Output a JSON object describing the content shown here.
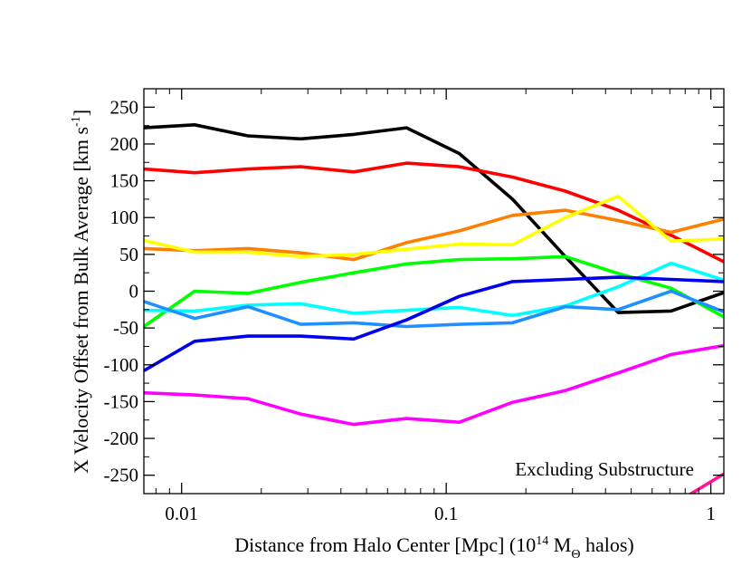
{
  "chart_data": {
    "type": "line",
    "title": "",
    "xlabel": "Distance from Halo Center [Mpc] (10",
    "xlabel_sup": "14",
    "xlabel_unit": " M",
    "xlabel_sub": "Θ",
    "xlabel_tail": " halos)",
    "ylabel": "X Velocity Offset from Bulk Average [km s",
    "ylabel_sup": "-1",
    "ylabel_tail": "]",
    "x_scale": "log",
    "xlim": [
      0.0072,
      1.12
    ],
    "ylim": [
      -275,
      275
    ],
    "xticks": [
      0.01,
      0.1,
      1
    ],
    "xtick_labels": [
      "0.01",
      "0.1",
      "1"
    ],
    "yticks": [
      250,
      200,
      150,
      100,
      50,
      0,
      -50,
      -100,
      -150,
      -200,
      -250
    ],
    "ytick_labels": [
      "250",
      "200",
      "150",
      "100",
      "50",
      "0",
      "-50",
      "-100",
      "-150",
      "-200",
      "-250"
    ],
    "grid": false,
    "legend": "none",
    "annotation": "Excluding Substructure",
    "series": [
      {
        "color": "#000000",
        "x": [
          0.0072,
          0.0112,
          0.0178,
          0.0282,
          0.0447,
          0.0708,
          0.112,
          0.178,
          0.282,
          0.447,
          0.708,
          1.12
        ],
        "y": [
          222,
          226,
          211,
          207,
          213,
          222,
          187,
          125,
          47,
          -29,
          -27,
          -2
        ]
      },
      {
        "color": "#ff0000",
        "x": [
          0.0072,
          0.0112,
          0.0178,
          0.0282,
          0.0447,
          0.0708,
          0.112,
          0.178,
          0.282,
          0.447,
          0.708,
          1.12
        ],
        "y": [
          166,
          161,
          166,
          169,
          162,
          174,
          169,
          155,
          136,
          110,
          76,
          40
        ]
      },
      {
        "color": "#ff8000",
        "x": [
          0.0072,
          0.0112,
          0.0178,
          0.0282,
          0.0447,
          0.0708,
          0.112,
          0.178,
          0.282,
          0.447,
          0.708,
          1.12
        ],
        "y": [
          58,
          55,
          58,
          52,
          43,
          66,
          82,
          103,
          110,
          96,
          80,
          98
        ]
      },
      {
        "color": "#ffff00",
        "x": [
          0.0072,
          0.0112,
          0.0178,
          0.0282,
          0.0447,
          0.0708,
          0.112,
          0.178,
          0.282,
          0.447,
          0.708,
          1.12
        ],
        "y": [
          69,
          53,
          53,
          47,
          50,
          57,
          64,
          63,
          100,
          129,
          68,
          71
        ]
      },
      {
        "color": "#00ff00",
        "x": [
          0.0072,
          0.0112,
          0.0178,
          0.0282,
          0.0447,
          0.0708,
          0.112,
          0.178,
          0.282,
          0.447,
          0.708,
          1.12
        ],
        "y": [
          -48,
          0,
          -3,
          12,
          25,
          37,
          43,
          44,
          47,
          24,
          4,
          -35
        ]
      },
      {
        "color": "#00ffff",
        "x": [
          0.0072,
          0.0112,
          0.0178,
          0.0282,
          0.0447,
          0.0708,
          0.112,
          0.178,
          0.282,
          0.447,
          0.708,
          1.12
        ],
        "y": [
          -26,
          -27,
          -19,
          -17,
          -30,
          -26,
          -22,
          -33,
          -20,
          6,
          38,
          15
        ]
      },
      {
        "color": "#1e90ff",
        "x": [
          0.0072,
          0.0112,
          0.0178,
          0.0282,
          0.0447,
          0.0708,
          0.112,
          0.178,
          0.282,
          0.447,
          0.708,
          1.12
        ],
        "y": [
          -14,
          -37,
          -21,
          -45,
          -43,
          -48,
          -45,
          -43,
          -21,
          -25,
          0,
          -28
        ]
      },
      {
        "color": "#0000ee",
        "x": [
          0.0072,
          0.0112,
          0.0178,
          0.0282,
          0.0447,
          0.0708,
          0.112,
          0.178,
          0.282,
          0.447,
          0.708,
          1.12
        ],
        "y": [
          -108,
          -68,
          -61,
          -61,
          -65,
          -39,
          -7,
          13,
          16,
          19,
          16,
          13
        ]
      },
      {
        "color": "#ff00ff",
        "x": [
          0.0072,
          0.0112,
          0.0178,
          0.0282,
          0.0447,
          0.0708,
          0.112,
          0.178,
          0.282,
          0.447,
          0.708,
          1.12
        ],
        "y": [
          -138,
          -141,
          -146,
          -167,
          -181,
          -173,
          -178,
          -151,
          -135,
          -111,
          -86,
          -74
        ]
      },
      {
        "color": "#ff1493",
        "x": [
          0.708,
          0.8,
          1.12
        ],
        "y": [
          -285,
          -280,
          -248
        ]
      }
    ]
  }
}
